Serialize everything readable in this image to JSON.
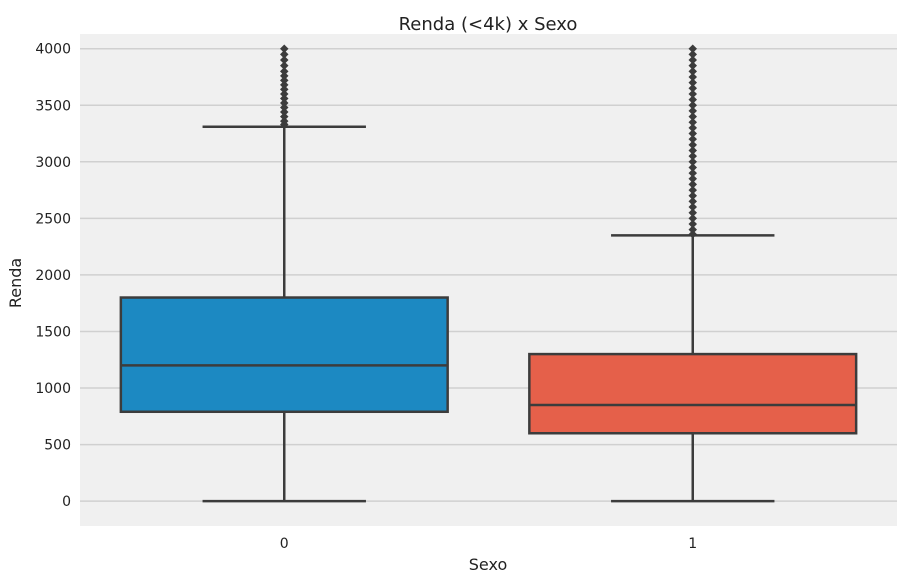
{
  "chart_data": {
    "type": "box",
    "title": "Renda (<4k) x Sexo",
    "xlabel": "Sexo",
    "ylabel": "Renda",
    "categories": [
      "0",
      "1"
    ],
    "ylim": [
      -220,
      4130
    ],
    "yticks": [
      0,
      500,
      1000,
      1500,
      2000,
      2500,
      3000,
      3500,
      4000
    ],
    "grid": "horizontal",
    "background": "#f0f0f0",
    "grid_color": "#d0d0d0",
    "edge_color": "#3c3c3c",
    "series": [
      {
        "category": "0",
        "color": "#1c89c2",
        "whisker_low": 0,
        "q1": 790,
        "median": 1200,
        "q3": 1800,
        "whisker_high": 3310,
        "outliers": [
          3330,
          3360,
          3400,
          3440,
          3480,
          3520,
          3560,
          3600,
          3640,
          3680,
          3720,
          3760,
          3800,
          3850,
          3900,
          3950,
          4000
        ]
      },
      {
        "category": "1",
        "color": "#e5604a",
        "whisker_low": 0,
        "q1": 600,
        "median": 850,
        "q3": 1300,
        "whisker_high": 2350,
        "outliers": [
          2360,
          2400,
          2450,
          2500,
          2550,
          2600,
          2650,
          2700,
          2750,
          2800,
          2850,
          2900,
          2950,
          3000,
          3050,
          3100,
          3150,
          3200,
          3250,
          3300,
          3350,
          3400,
          3450,
          3500,
          3550,
          3600,
          3650,
          3700,
          3750,
          3800,
          3850,
          3900,
          3950,
          4000
        ]
      }
    ]
  }
}
